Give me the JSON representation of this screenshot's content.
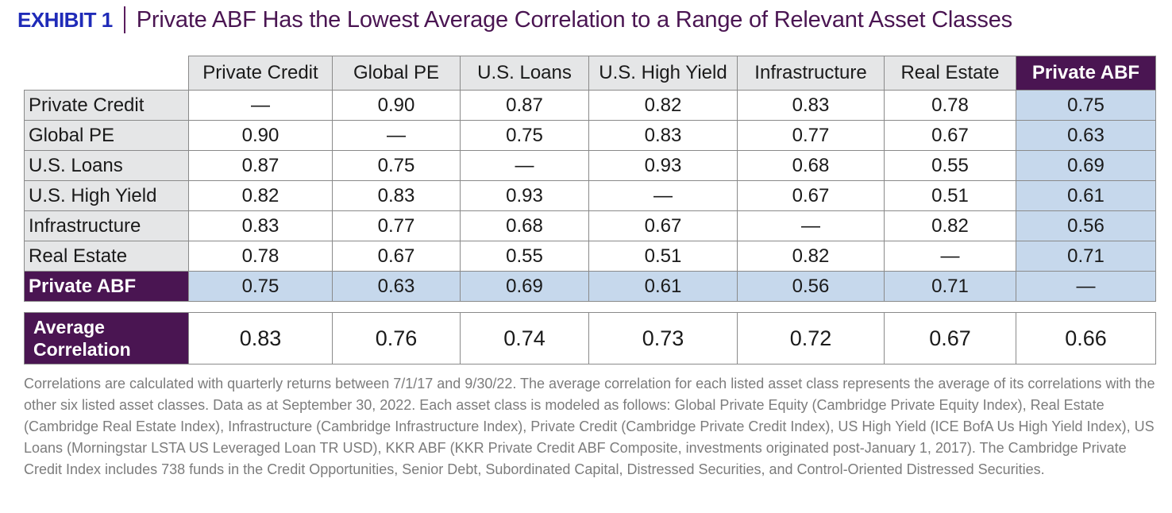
{
  "header": {
    "exhibit": "EXHIBIT 1",
    "title": "Private ABF Has the Lowest Average Correlation to a Range of Relevant Asset Classes"
  },
  "chart_data": {
    "type": "table",
    "columns": [
      "Private Credit",
      "Global PE",
      "U.S. Loans",
      "U.S. High Yield",
      "Infrastructure",
      "Real Estate",
      "Private ABF"
    ],
    "rows": [
      {
        "label": "Private Credit",
        "values": [
          "—",
          "0.90",
          "0.87",
          "0.82",
          "0.83",
          "0.78",
          "0.75"
        ]
      },
      {
        "label": "Global PE",
        "values": [
          "0.90",
          "—",
          "0.75",
          "0.83",
          "0.77",
          "0.67",
          "0.63"
        ]
      },
      {
        "label": "U.S. Loans",
        "values": [
          "0.87",
          "0.75",
          "—",
          "0.93",
          "0.68",
          "0.55",
          "0.69"
        ]
      },
      {
        "label": "U.S. High Yield",
        "values": [
          "0.82",
          "0.83",
          "0.93",
          "—",
          "0.67",
          "0.51",
          "0.61"
        ]
      },
      {
        "label": "Infrastructure",
        "values": [
          "0.83",
          "0.77",
          "0.68",
          "0.67",
          "—",
          "0.82",
          "0.56"
        ]
      },
      {
        "label": "Real Estate",
        "values": [
          "0.78",
          "0.67",
          "0.55",
          "0.51",
          "0.82",
          "—",
          "0.71"
        ]
      },
      {
        "label": "Private ABF",
        "values": [
          "0.75",
          "0.63",
          "0.69",
          "0.61",
          "0.56",
          "0.71",
          "—"
        ]
      }
    ],
    "average": {
      "label_line1": "Average",
      "label_line2": "Correlation",
      "values": [
        "0.83",
        "0.76",
        "0.74",
        "0.73",
        "0.72",
        "0.67",
        "0.66"
      ]
    }
  },
  "footnote": "Correlations are calculated with quarterly returns between 7/1/17 and 9/30/22. The average correlation for each listed asset class represents the average of its correlations with the other six listed asset classes. Data as at September 30, 2022. Each asset class is modeled as follows: Global Private Equity (Cambridge Private Equity Index), Real Estate (Cambridge Real Estate Index), Infrastructure (Cambridge Infrastructure Index), Private Credit (Cambridge Private Credit Index), US High Yield (ICE BofA Us High Yield Index), US Loans (Morningstar LSTA US Leveraged Loan TR USD), KKR ABF (KKR Private Credit ABF Composite, investments originated post-January 1, 2017). The Cambridge Private Credit Index includes 738 funds in the Credit Opportunities, Senior Debt, Subordinated Capital, Distressed Securities, and Control-Oriented Distressed Securities.",
  "colors": {
    "exhibit_blue": "#1f2bb8",
    "title_purple": "#4a1552",
    "abf_highlight": "#c6d8ec",
    "header_gray": "#e5e6e7"
  }
}
